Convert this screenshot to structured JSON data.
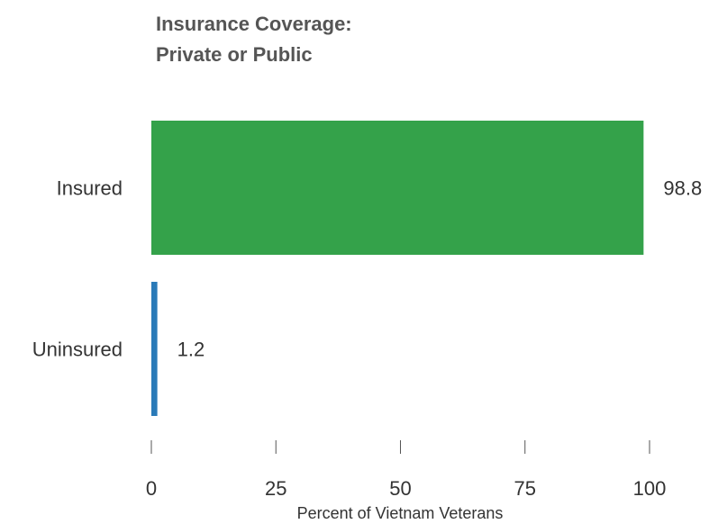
{
  "chart_data": {
    "type": "bar",
    "orientation": "horizontal",
    "title_lines": [
      "Insurance Coverage:",
      "Private or Public"
    ],
    "categories": [
      "Insured",
      "Uninsured"
    ],
    "values": [
      98.8,
      1.2
    ],
    "value_labels": [
      "98.8",
      "1.2"
    ],
    "colors": [
      "#34a24a",
      "#2a7ab8"
    ],
    "xlabel": "Percent of Vietnam Veterans",
    "xlim": [
      0,
      100
    ],
    "xticks": [
      0,
      25,
      50,
      75,
      100
    ],
    "xtick_labels": [
      "0",
      "25",
      "50",
      "75",
      "100"
    ],
    "grid": false
  }
}
